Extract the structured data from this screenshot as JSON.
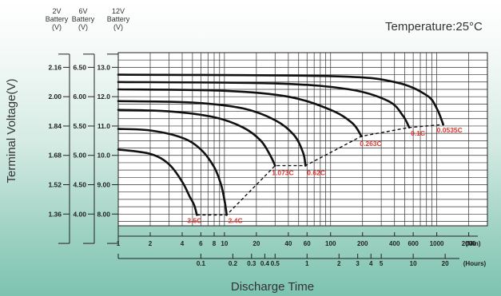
{
  "chart_data": {
    "type": "line",
    "title": "Temperature:25°C",
    "ylabel": "Terminal Voltage(V)",
    "xlabel": "Discharge Time",
    "x_scale": "log",
    "xlim_min": [
      1,
      3000
    ],
    "x_unit_min": "(Min)",
    "x_unit_hours": "(Hours)",
    "x_ticks_min": [
      1,
      2,
      4,
      6,
      8,
      10,
      20,
      40,
      60,
      100,
      200,
      400,
      600,
      1000,
      2000
    ],
    "x_ticks_hours": [
      0.1,
      0.2,
      0.3,
      0.4,
      0.5,
      1,
      2,
      3,
      4,
      5,
      10,
      20
    ],
    "grid": true,
    "y_axes": [
      {
        "header": [
          "2V",
          "Battery",
          "(V)"
        ],
        "ticks": [
          "2.16",
          "2.00",
          "1.84",
          "1.68",
          "1.52",
          "1.36"
        ]
      },
      {
        "header": [
          "6V",
          "Battery",
          "(V)"
        ],
        "ticks": [
          "6.50",
          "6.00",
          "5.50",
          "5.00",
          "4.50",
          "4.00"
        ]
      },
      {
        "header": [
          "12V",
          "Battery",
          "(V)"
        ],
        "ticks": [
          "13.0",
          "12.0",
          "11.0",
          "10.0",
          "9.00",
          "8.00"
        ]
      }
    ],
    "ylim_12v": [
      7.6,
      13.5
    ],
    "series": [
      {
        "label": "3.5C",
        "points": [
          [
            1,
            10.2
          ],
          [
            2,
            10.05
          ],
          [
            3,
            9.7
          ],
          [
            4,
            9.1
          ],
          [
            4.7,
            8.6
          ],
          [
            5.2,
            8.3
          ],
          [
            5.5,
            7.97
          ]
        ]
      },
      {
        "label": "2.4C",
        "points": [
          [
            1,
            10.9
          ],
          [
            2,
            10.85
          ],
          [
            4,
            10.6
          ],
          [
            6,
            10.2
          ],
          [
            8,
            9.6
          ],
          [
            9.3,
            9.0
          ],
          [
            10.1,
            8.4
          ],
          [
            10.5,
            7.97
          ]
        ]
      },
      {
        "label": "1.073C",
        "points": [
          [
            1,
            11.55
          ],
          [
            3,
            11.5
          ],
          [
            8,
            11.3
          ],
          [
            15,
            10.95
          ],
          [
            22,
            10.5
          ],
          [
            27,
            10.0
          ],
          [
            30,
            9.65
          ]
        ]
      },
      {
        "label": "0.62C",
        "points": [
          [
            1,
            11.85
          ],
          [
            5,
            11.8
          ],
          [
            15,
            11.6
          ],
          [
            30,
            11.2
          ],
          [
            45,
            10.7
          ],
          [
            55,
            10.1
          ],
          [
            58,
            9.65
          ]
        ]
      },
      {
        "label": "0.263C",
        "points": [
          [
            1,
            12.25
          ],
          [
            10,
            12.2
          ],
          [
            40,
            12.0
          ],
          [
            100,
            11.55
          ],
          [
            160,
            11.1
          ],
          [
            195,
            10.65
          ]
        ]
      },
      {
        "label": "0.1C",
        "points": [
          [
            1,
            12.5
          ],
          [
            30,
            12.45
          ],
          [
            150,
            12.25
          ],
          [
            350,
            11.85
          ],
          [
            480,
            11.35
          ],
          [
            550,
            10.95
          ]
        ]
      },
      {
        "label": "0.0535C",
        "points": [
          [
            1,
            12.75
          ],
          [
            100,
            12.7
          ],
          [
            400,
            12.5
          ],
          [
            800,
            12.05
          ],
          [
            1000,
            11.6
          ],
          [
            1150,
            11.05
          ]
        ]
      }
    ],
    "end_voltage_line": [
      [
        5.5,
        7.97
      ],
      [
        10.5,
        7.97
      ],
      [
        30,
        9.65
      ],
      [
        58,
        9.65
      ],
      [
        195,
        10.65
      ],
      [
        550,
        10.95
      ],
      [
        1150,
        11.05
      ]
    ]
  }
}
